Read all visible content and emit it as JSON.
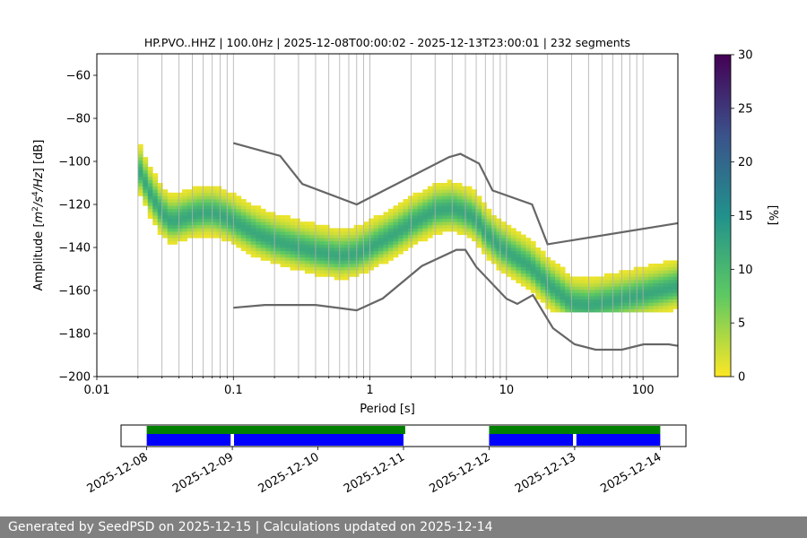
{
  "chart_data": [
    {
      "type": "heatmap",
      "title": "HP.PVO..HHZ | 100.0Hz | 2025-12-08T00:00:02 - 2025-12-13T23:00:01 | 232 segments",
      "xlabel": "Period [s]",
      "ylabel": "Amplitude [$m^2/s^4/Hz$] [dB]",
      "x_scale": "log",
      "xlim": [
        0.01,
        180
      ],
      "ylim": [
        -200,
        -50
      ],
      "xticks": [
        {
          "value": 0.01,
          "label": "0.01"
        },
        {
          "value": 0.1,
          "label": "0.1"
        },
        {
          "value": 1,
          "label": "1"
        },
        {
          "value": 10,
          "label": "10"
        },
        {
          "value": 100,
          "label": "100"
        }
      ],
      "yticks": [
        {
          "value": -60,
          "label": "−60"
        },
        {
          "value": -80,
          "label": "−80"
        },
        {
          "value": -100,
          "label": "−100"
        },
        {
          "value": -120,
          "label": "−120"
        },
        {
          "value": -140,
          "label": "−140"
        },
        {
          "value": -160,
          "label": "−160"
        },
        {
          "value": -180,
          "label": "−180"
        },
        {
          "value": -200,
          "label": "−200"
        }
      ],
      "grid": "vertical lines at log-decade minor ticks",
      "colormap": "viridis_r",
      "colorbar": {
        "label": "[%]",
        "range": [
          0,
          30
        ],
        "ticks": [
          {
            "value": 0,
            "label": "0"
          },
          {
            "value": 5,
            "label": "5"
          },
          {
            "value": 10,
            "label": "10"
          },
          {
            "value": 15,
            "label": "15"
          },
          {
            "value": 20,
            "label": "20"
          },
          {
            "value": 25,
            "label": "25"
          },
          {
            "value": 30,
            "label": "30"
          }
        ]
      },
      "mode_curve": [
        [
          0.02,
          -103
        ],
        [
          0.025,
          -116
        ],
        [
          0.03,
          -124
        ],
        [
          0.035,
          -128
        ],
        [
          0.04,
          -127
        ],
        [
          0.05,
          -125
        ],
        [
          0.06,
          -124
        ],
        [
          0.07,
          -124
        ],
        [
          0.08,
          -125
        ],
        [
          0.1,
          -128
        ],
        [
          0.15,
          -134
        ],
        [
          0.2,
          -137
        ],
        [
          0.3,
          -140
        ],
        [
          0.4,
          -142
        ],
        [
          0.6,
          -144
        ],
        [
          0.8,
          -143
        ],
        [
          1.0,
          -140
        ],
        [
          1.5,
          -134
        ],
        [
          2.0,
          -129
        ],
        [
          3.0,
          -123
        ],
        [
          4.0,
          -122
        ],
        [
          5.0,
          -124
        ],
        [
          6.0,
          -127
        ],
        [
          7.0,
          -133
        ],
        [
          8.0,
          -137
        ],
        [
          10.0,
          -142
        ],
        [
          15.0,
          -149
        ],
        [
          20.0,
          -157
        ],
        [
          30.0,
          -166
        ],
        [
          40.0,
          -167
        ],
        [
          60.0,
          -165
        ],
        [
          100.0,
          -162
        ],
        [
          180.0,
          -158
        ]
      ],
      "heatmap_extent": {
        "x": [
          0.02,
          180
        ],
        "y": [
          -170,
          -85
        ]
      },
      "noise_models": [
        {
          "name": "",
          "x": [
            0.1,
            0.22,
            0.32,
            0.8,
            3.8,
            4.6,
            6.3,
            7.9,
            15.4,
            20,
            180
          ],
          "y": [
            -91.5,
            -97.4,
            -110.5,
            -120,
            -98,
            -96.5,
            -101,
            -113.5,
            -120,
            -138.5,
            -128.7
          ]
        },
        {
          "name": "",
          "x": [
            0.1,
            0.17,
            0.4,
            0.8,
            1.24,
            2.4,
            4.3,
            5,
            6,
            10,
            12,
            15.6,
            21.9,
            31.6,
            45,
            70,
            101,
            154,
            180
          ],
          "y": [
            -168,
            -166.7,
            -166.7,
            -169.2,
            -163.7,
            -148.6,
            -141.1,
            -141.1,
            -149,
            -163.8,
            -166.2,
            -162.1,
            -177.5,
            -185,
            -187.5,
            -187.5,
            -185,
            -185,
            -185.7
          ]
        }
      ]
    },
    {
      "type": "timeline",
      "date_ticks": [
        "2025-12-08",
        "2025-12-09",
        "2025-12-10",
        "2025-12-11",
        "2025-12-12",
        "2025-12-13",
        "2025-12-14"
      ],
      "xlim_days": [
        -0.3,
        6.3
      ],
      "green_bars": [
        [
          0,
          3.02
        ],
        [
          4,
          6
        ]
      ],
      "blue_bars": [
        [
          0,
          0.98
        ],
        [
          1.02,
          3
        ],
        [
          4,
          4.98
        ],
        [
          5.02,
          6
        ]
      ],
      "colors": {
        "green": "#008000",
        "blue": "#0000ff"
      }
    }
  ],
  "footer": "Generated by SeedPSD on 2025-12-15 | Calculations updated on 2025-12-14"
}
